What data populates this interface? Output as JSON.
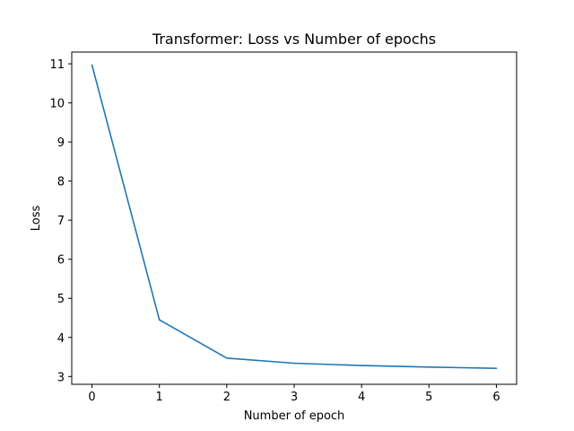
{
  "chart_data": {
    "type": "line",
    "title": "Transformer: Loss vs Number of epochs",
    "xlabel": "Number of epoch",
    "ylabel": "Loss",
    "xlim": [
      -0.3,
      6.3
    ],
    "ylim": [
      2.8,
      11.3
    ],
    "xticks": [
      0,
      1,
      2,
      3,
      4,
      5,
      6
    ],
    "yticks": [
      3,
      4,
      5,
      6,
      7,
      8,
      9,
      10,
      11
    ],
    "grid": false,
    "series": [
      {
        "color": "#1f77b4",
        "x": [
          0,
          1,
          2,
          3,
          4,
          5,
          6
        ],
        "y": [
          10.97,
          4.45,
          3.47,
          3.34,
          3.28,
          3.24,
          3.21
        ]
      }
    ]
  }
}
